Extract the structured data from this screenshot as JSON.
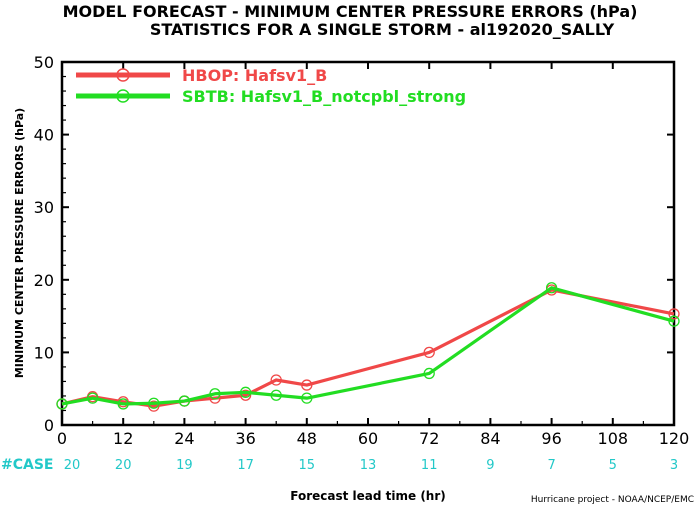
{
  "chart_data": {
    "type": "line",
    "title": "MODEL FORECAST - MINIMUM CENTER PRESSURE ERRORS (hPa)",
    "subtitle": "STATISTICS FOR A SINGLE STORM - al192020_SALLY",
    "xlabel": "Forecast lead time (hr)",
    "ylabel": "MINIMUM CENTER PRESSURE ERRORS (hPa)",
    "xlim": [
      0,
      120
    ],
    "ylim": [
      0,
      50
    ],
    "x_ticks": [
      0,
      12,
      24,
      36,
      48,
      60,
      72,
      84,
      96,
      108,
      120
    ],
    "y_ticks": [
      0,
      10,
      20,
      30,
      40,
      50
    ],
    "grid": false,
    "legend_position": "top-left",
    "series": [
      {
        "name": "HBOP: Hafsv1_B",
        "color": "#f04848",
        "x": [
          0,
          6,
          12,
          18,
          24,
          30,
          36,
          42,
          48,
          72,
          96,
          120
        ],
        "y": [
          2.9,
          3.9,
          3.2,
          2.6,
          3.3,
          3.7,
          4.1,
          6.2,
          5.5,
          10.0,
          18.6,
          15.3
        ]
      },
      {
        "name": "SBTB: Hafsv1_B_notcpbl_strong",
        "color": "#22dd22",
        "x": [
          0,
          6,
          12,
          18,
          24,
          30,
          36,
          42,
          48,
          72,
          96,
          120
        ],
        "y": [
          2.9,
          3.7,
          2.9,
          3.0,
          3.3,
          4.3,
          4.5,
          4.1,
          3.7,
          7.1,
          18.9,
          14.3
        ]
      }
    ],
    "case_counts": {
      "label": "#CASE",
      "x": [
        0,
        12,
        24,
        36,
        48,
        60,
        72,
        84,
        96,
        108,
        120
      ],
      "values": [
        "20",
        "20",
        "19",
        "17",
        "15",
        "13",
        "11",
        "9",
        "7",
        "5",
        "3"
      ],
      "color": "#22c8c8"
    },
    "footer": "Hurricane project - NOAA/NCEP/EMC"
  }
}
